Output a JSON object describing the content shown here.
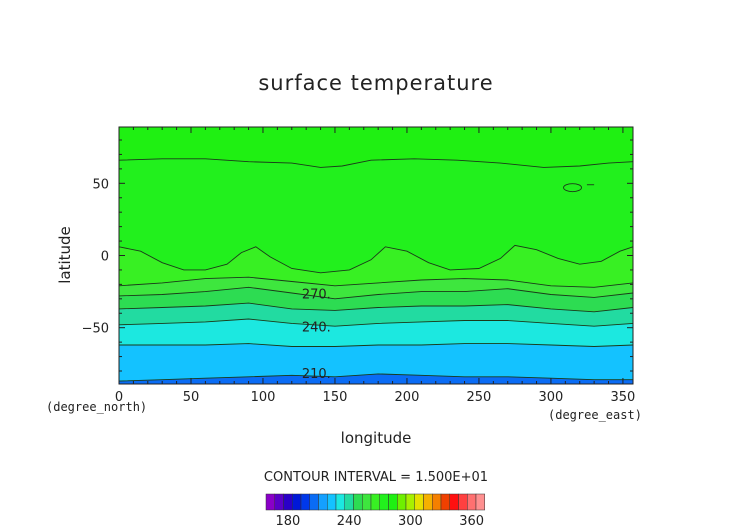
{
  "chart_data": {
    "type": "heatmap",
    "title": "surface temperature",
    "xlabel": "longitude",
    "ylabel": "latitude",
    "x_unit": "(degree_east)",
    "y_unit": "(degree_north)",
    "xlim": [
      0,
      357
    ],
    "ylim": [
      -89,
      89
    ],
    "x_ticks": [
      0,
      50,
      100,
      150,
      200,
      250,
      300,
      350
    ],
    "y_ticks": [
      50,
      0,
      -50
    ],
    "x_tick_labels": [
      "0",
      "50",
      "100",
      "150",
      "200",
      "250",
      "300",
      "350"
    ],
    "y_tick_labels": [
      "50",
      "0",
      "−50"
    ],
    "contour_interval_text": "CONTOUR INTERVAL = 1.500E+01",
    "contour_labels": [
      {
        "text": "270.",
        "lon": 127,
        "lat": -27
      },
      {
        "text": "240.",
        "lon": 127,
        "lat": -50
      },
      {
        "text": "210.",
        "lon": 127,
        "lat": -82
      }
    ],
    "bands": [
      {
        "level": 285,
        "color": "#3ee63e",
        "boundary": [
          [
            0,
            -21
          ],
          [
            30,
            -19
          ],
          [
            60,
            -16
          ],
          [
            90,
            -15
          ],
          [
            120,
            -18
          ],
          [
            150,
            -21
          ],
          [
            180,
            -19
          ],
          [
            210,
            -17
          ],
          [
            240,
            -16
          ],
          [
            270,
            -17
          ],
          [
            300,
            -21
          ],
          [
            330,
            -22
          ],
          [
            357,
            -19
          ]
        ]
      },
      {
        "level": 270,
        "color": "#2ddc52",
        "boundary": [
          [
            0,
            -28
          ],
          [
            30,
            -27
          ],
          [
            60,
            -25
          ],
          [
            90,
            -22
          ],
          [
            120,
            -26
          ],
          [
            150,
            -30
          ],
          [
            180,
            -27
          ],
          [
            210,
            -25
          ],
          [
            240,
            -25
          ],
          [
            270,
            -23
          ],
          [
            300,
            -27
          ],
          [
            330,
            -29
          ],
          [
            357,
            -26
          ]
        ]
      },
      {
        "level": 255,
        "color": "#22dba1",
        "boundary": [
          [
            0,
            -37
          ],
          [
            30,
            -36
          ],
          [
            60,
            -35
          ],
          [
            90,
            -33
          ],
          [
            120,
            -37
          ],
          [
            150,
            -38
          ],
          [
            180,
            -36
          ],
          [
            210,
            -35
          ],
          [
            240,
            -35
          ],
          [
            270,
            -34
          ],
          [
            300,
            -37
          ],
          [
            330,
            -39
          ],
          [
            357,
            -36
          ]
        ]
      },
      {
        "level": 240,
        "color": "#1ce8e0",
        "boundary": [
          [
            0,
            -48
          ],
          [
            30,
            -47
          ],
          [
            60,
            -46
          ],
          [
            90,
            -44
          ],
          [
            120,
            -47
          ],
          [
            150,
            -49
          ],
          [
            180,
            -47
          ],
          [
            210,
            -46
          ],
          [
            240,
            -45
          ],
          [
            270,
            -45
          ],
          [
            300,
            -47
          ],
          [
            330,
            -49
          ],
          [
            357,
            -47
          ]
        ]
      },
      {
        "level": 225,
        "color": "#14c2ff",
        "boundary": [
          [
            0,
            -62
          ],
          [
            30,
            -62
          ],
          [
            60,
            -62
          ],
          [
            90,
            -61
          ],
          [
            120,
            -63
          ],
          [
            150,
            -63
          ],
          [
            180,
            -62
          ],
          [
            210,
            -62
          ],
          [
            240,
            -61
          ],
          [
            270,
            -61
          ],
          [
            300,
            -62
          ],
          [
            330,
            -63
          ],
          [
            357,
            -62
          ]
        ]
      },
      {
        "level": 210,
        "color": "#0a6cf5",
        "boundary": [
          [
            0,
            -87
          ],
          [
            30,
            -86
          ],
          [
            60,
            -85
          ],
          [
            90,
            -84
          ],
          [
            120,
            -83
          ],
          [
            150,
            -84
          ],
          [
            180,
            -82
          ],
          [
            210,
            -83
          ],
          [
            240,
            -84
          ],
          [
            270,
            -84
          ],
          [
            300,
            -85
          ],
          [
            330,
            -86
          ],
          [
            357,
            -86
          ]
        ]
      }
    ],
    "equator_band": {
      "level": 290,
      "color": "#38f023",
      "boundary": [
        [
          0,
          6
        ],
        [
          15,
          3
        ],
        [
          30,
          -5
        ],
        [
          45,
          -10
        ],
        [
          60,
          -10
        ],
        [
          75,
          -6
        ],
        [
          85,
          2
        ],
        [
          95,
          6
        ],
        [
          105,
          -1
        ],
        [
          120,
          -9
        ],
        [
          140,
          -12
        ],
        [
          160,
          -10
        ],
        [
          175,
          -3
        ],
        [
          185,
          6
        ],
        [
          200,
          3
        ],
        [
          215,
          -5
        ],
        [
          230,
          -10
        ],
        [
          250,
          -9
        ],
        [
          265,
          -2
        ],
        [
          275,
          7
        ],
        [
          290,
          4
        ],
        [
          305,
          -2
        ],
        [
          320,
          -6
        ],
        [
          335,
          -4
        ],
        [
          348,
          3
        ],
        [
          357,
          6
        ]
      ]
    },
    "polar_band": {
      "level": 300,
      "color": "#22f01d",
      "boundary": [
        [
          0,
          66
        ],
        [
          30,
          67
        ],
        [
          60,
          67
        ],
        [
          90,
          65
        ],
        [
          120,
          64
        ],
        [
          140,
          61
        ],
        [
          155,
          62
        ],
        [
          175,
          66
        ],
        [
          205,
          67
        ],
        [
          235,
          66
        ],
        [
          265,
          64
        ],
        [
          295,
          61
        ],
        [
          320,
          62
        ],
        [
          340,
          64
        ],
        [
          357,
          65
        ]
      ]
    },
    "top_color": "#1ff012",
    "colorbar": {
      "colors": [
        "#8a00c8",
        "#5a00c8",
        "#2a00c8",
        "#0018d8",
        "#0038ea",
        "#0a6cf5",
        "#14a0ff",
        "#14c2ff",
        "#1ce8e0",
        "#22dba1",
        "#2ddc52",
        "#3ee63e",
        "#38f023",
        "#22f01d",
        "#1ff012",
        "#6ff000",
        "#a8f000",
        "#e6e000",
        "#f5b000",
        "#f58000",
        "#f04000",
        "#ff1010",
        "#ff4040",
        "#ff7070",
        "#ff9090"
      ],
      "tick_labels": [
        "180",
        "240",
        "300",
        "360"
      ],
      "tick_index": [
        2.5,
        9.5,
        16.5,
        23.5
      ]
    }
  }
}
